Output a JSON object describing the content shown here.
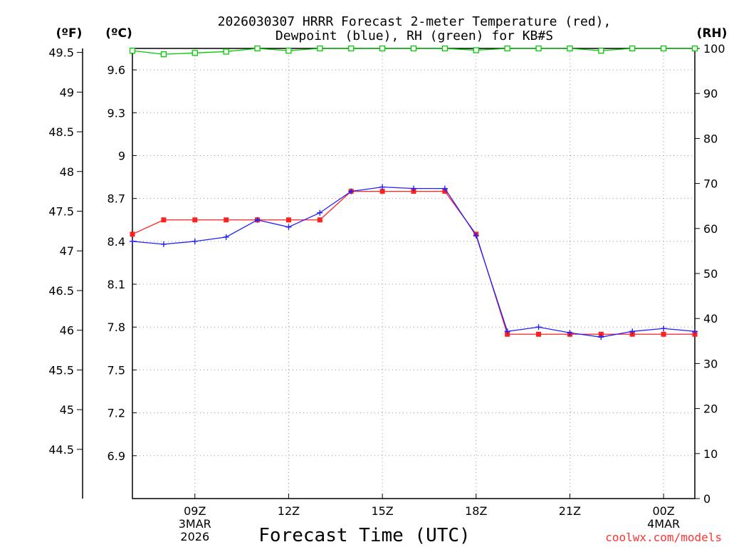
{
  "chart_data": {
    "type": "line",
    "title": "2026030307 HRRR Forecast 2-meter Temperature (red),",
    "subtitle": "Dewpoint (blue), RH (green) for KB#S",
    "xlabel": "Forecast Time (UTC)",
    "unit_labels": {
      "left_f": "(ºF)",
      "left_c": "(ºC)",
      "right": "(RH)"
    },
    "watermark": "coolwx.com/models",
    "x_hours": [
      7,
      8,
      9,
      10,
      11,
      12,
      13,
      14,
      15,
      16,
      17,
      18,
      19,
      20,
      21,
      22,
      23,
      24,
      25
    ],
    "xlim": [
      7,
      25
    ],
    "x_ticks": [
      {
        "hour": 9,
        "lines": [
          "09Z",
          "3MAR",
          "2026"
        ]
      },
      {
        "hour": 12,
        "lines": [
          "12Z"
        ]
      },
      {
        "hour": 15,
        "lines": [
          "15Z"
        ]
      },
      {
        "hour": 18,
        "lines": [
          "18Z"
        ]
      },
      {
        "hour": 21,
        "lines": [
          "21Z"
        ]
      },
      {
        "hour": 24,
        "lines": [
          "00Z",
          "4MAR"
        ]
      }
    ],
    "celsius_axis": {
      "ylim": [
        6.6,
        9.75
      ],
      "ticks": [
        "6.9",
        "7.2",
        "7.5",
        "7.8",
        "8.1",
        "8.4",
        "8.7",
        "9",
        "9.3",
        "9.6"
      ]
    },
    "fahrenheit_axis": {
      "ylim": [
        43.88,
        49.55
      ],
      "ticks": [
        "44.5",
        "45",
        "45.5",
        "46",
        "46.5",
        "47",
        "47.5",
        "48",
        "48.5",
        "49",
        "49.5"
      ]
    },
    "rh_axis": {
      "ylim": [
        0,
        100
      ],
      "ticks": [
        "0",
        "10",
        "20",
        "30",
        "40",
        "50",
        "60",
        "70",
        "80",
        "90",
        "100"
      ]
    },
    "series": [
      {
        "name": "Temperature",
        "axis": "celsius",
        "color": "#ff2020",
        "marker": "square",
        "values": [
          8.45,
          8.55,
          8.55,
          8.55,
          8.55,
          8.55,
          8.55,
          8.75,
          8.75,
          8.75,
          8.75,
          8.45,
          7.75,
          7.75,
          7.75,
          7.75,
          7.75,
          7.75,
          7.75
        ]
      },
      {
        "name": "Dewpoint",
        "axis": "celsius",
        "color": "#2020ff",
        "marker": "plus",
        "values": [
          8.4,
          8.38,
          8.4,
          8.43,
          8.55,
          8.5,
          8.6,
          8.75,
          8.78,
          8.77,
          8.77,
          8.44,
          7.77,
          7.8,
          7.76,
          7.73,
          7.77,
          7.79,
          7.77
        ]
      },
      {
        "name": "RH",
        "axis": "rh",
        "color": "#00cc00",
        "marker": "open-square",
        "values": [
          99.5,
          98.7,
          99,
          99.3,
          100,
          99.5,
          100,
          100,
          100,
          100,
          100,
          99.6,
          100,
          100,
          100,
          99.5,
          100,
          100,
          100
        ]
      }
    ]
  }
}
